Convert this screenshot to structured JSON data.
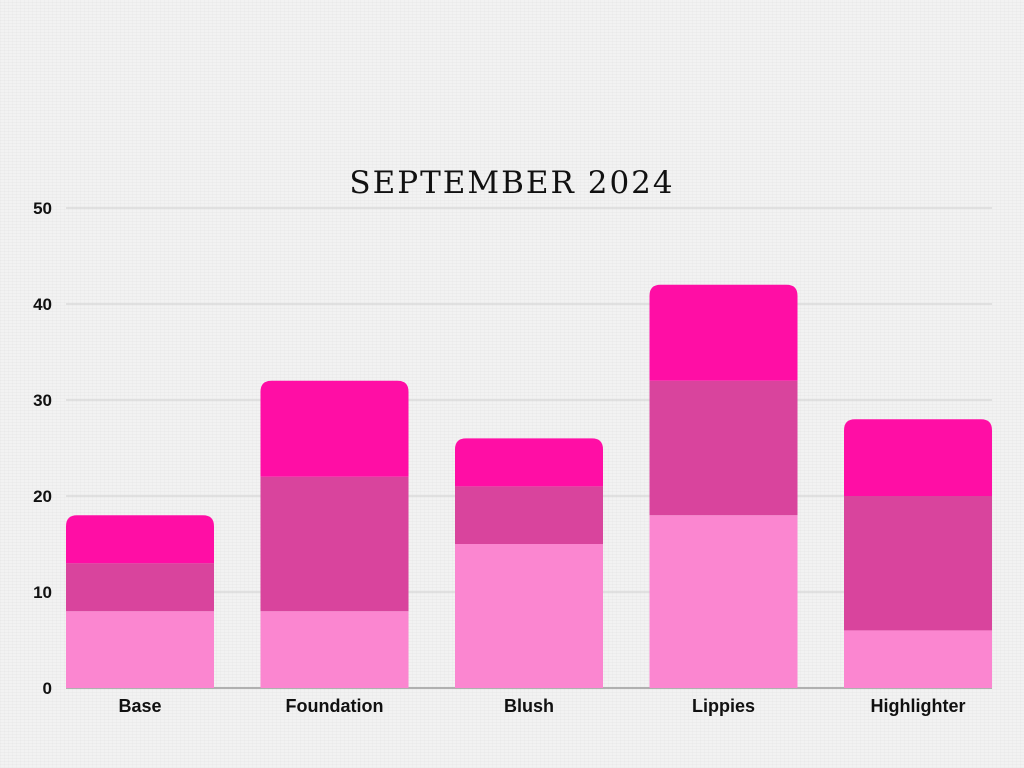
{
  "chart_data": {
    "type": "bar",
    "stacked": true,
    "title": "SEPTEMBER 2024",
    "xlabel": "",
    "ylabel": "",
    "ylim": [
      0,
      50
    ],
    "yticks": [
      "0",
      "10",
      "20",
      "30",
      "40",
      "50"
    ],
    "grid": true,
    "legend": "none",
    "categories": [
      "Base",
      "Foundation",
      "Blush",
      "Lippies",
      "Highlighter"
    ],
    "series": [
      {
        "values": [
          8,
          8,
          15,
          18,
          6
        ],
        "color": "#fb86d0"
      },
      {
        "values": [
          5,
          14,
          6,
          14,
          14
        ],
        "color": "#d9449d"
      },
      {
        "values": [
          5,
          10,
          5,
          10,
          8
        ],
        "color": "#ff0ea5"
      }
    ]
  }
}
